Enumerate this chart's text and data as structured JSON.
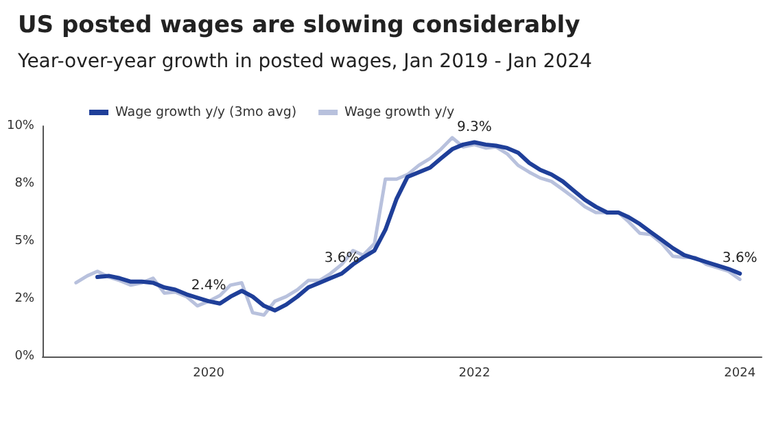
{
  "chart_data": {
    "type": "line",
    "title": "US posted wages are slowing considerably",
    "subtitle": "Year-over-year growth in posted wages, Jan 2019 - Jan 2024",
    "x": [
      "2019-01",
      "2019-02",
      "2019-03",
      "2019-04",
      "2019-05",
      "2019-06",
      "2019-07",
      "2019-08",
      "2019-09",
      "2019-10",
      "2019-11",
      "2019-12",
      "2020-01",
      "2020-02",
      "2020-03",
      "2020-04",
      "2020-05",
      "2020-06",
      "2020-07",
      "2020-08",
      "2020-09",
      "2020-10",
      "2020-11",
      "2020-12",
      "2021-01",
      "2021-02",
      "2021-03",
      "2021-04",
      "2021-05",
      "2021-06",
      "2021-07",
      "2021-08",
      "2021-09",
      "2021-10",
      "2021-11",
      "2021-12",
      "2022-01",
      "2022-02",
      "2022-03",
      "2022-04",
      "2022-05",
      "2022-06",
      "2022-07",
      "2022-08",
      "2022-09",
      "2022-10",
      "2022-11",
      "2022-12",
      "2023-01",
      "2023-02",
      "2023-03",
      "2023-04",
      "2023-05",
      "2023-06",
      "2023-07",
      "2023-08",
      "2023-09",
      "2023-10",
      "2023-11",
      "2023-12",
      "2024-01"
    ],
    "series": [
      {
        "name": "Wage growth y/y (3mo avg)",
        "color": "#1f3f99",
        "values": [
          null,
          null,
          3.45,
          3.5,
          3.4,
          3.25,
          3.25,
          3.2,
          3.0,
          2.9,
          2.7,
          2.55,
          2.4,
          2.3,
          2.6,
          2.85,
          2.6,
          2.2,
          2.0,
          2.25,
          2.6,
          3.0,
          3.2,
          3.4,
          3.6,
          4.0,
          4.3,
          4.6,
          5.5,
          6.85,
          7.8,
          8.0,
          8.2,
          8.6,
          9.0,
          9.2,
          9.3,
          9.2,
          9.15,
          9.05,
          8.85,
          8.4,
          8.1,
          7.9,
          7.6,
          7.2,
          6.8,
          6.5,
          6.25,
          6.25,
          6.05,
          5.75,
          5.4,
          5.05,
          4.7,
          4.4,
          4.25,
          4.1,
          3.95,
          3.8,
          3.6
        ],
        "value_labels": [
          null,
          null,
          null,
          null,
          null,
          null,
          null,
          null,
          null,
          null,
          null,
          null,
          "2.4%",
          null,
          null,
          null,
          null,
          null,
          null,
          null,
          null,
          null,
          null,
          null,
          "3.6%",
          null,
          null,
          null,
          null,
          null,
          null,
          null,
          null,
          null,
          null,
          null,
          "9.3%",
          null,
          null,
          null,
          null,
          null,
          null,
          null,
          null,
          null,
          null,
          null,
          null,
          null,
          null,
          null,
          null,
          null,
          null,
          null,
          null,
          null,
          null,
          null,
          "3.6%"
        ]
      },
      {
        "name": "Wage growth y/y",
        "color": "#b8c1dd",
        "values": [
          3.2,
          3.5,
          3.7,
          3.45,
          3.3,
          3.1,
          3.2,
          3.4,
          2.75,
          2.8,
          2.6,
          2.2,
          2.4,
          2.65,
          3.1,
          3.2,
          1.9,
          1.8,
          2.4,
          2.6,
          2.9,
          3.3,
          3.3,
          3.6,
          4.0,
          4.6,
          4.4,
          4.9,
          7.7,
          7.7,
          7.9,
          8.3,
          8.6,
          9.0,
          9.5,
          9.1,
          9.2,
          9.05,
          9.1,
          8.8,
          8.3,
          8.0,
          7.75,
          7.6,
          7.25,
          6.9,
          6.5,
          6.25,
          6.25,
          6.25,
          5.85,
          5.35,
          5.3,
          4.9,
          4.35,
          4.3,
          4.3,
          4.0,
          3.85,
          3.7,
          3.35
        ]
      }
    ],
    "xlim": [
      "2018-10",
      "2024-03"
    ],
    "xticks": [
      "2020",
      "2022",
      "2024"
    ],
    "ylim": [
      0,
      10
    ],
    "yticks": [
      {
        "value": 0,
        "label": "0%"
      },
      {
        "value": 2.5,
        "label": "2%"
      },
      {
        "value": 5,
        "label": "5%"
      },
      {
        "value": 7.5,
        "label": "8%"
      },
      {
        "value": 10,
        "label": "10%"
      }
    ],
    "grid": false,
    "legend": "top left",
    "line_style": "solid"
  }
}
